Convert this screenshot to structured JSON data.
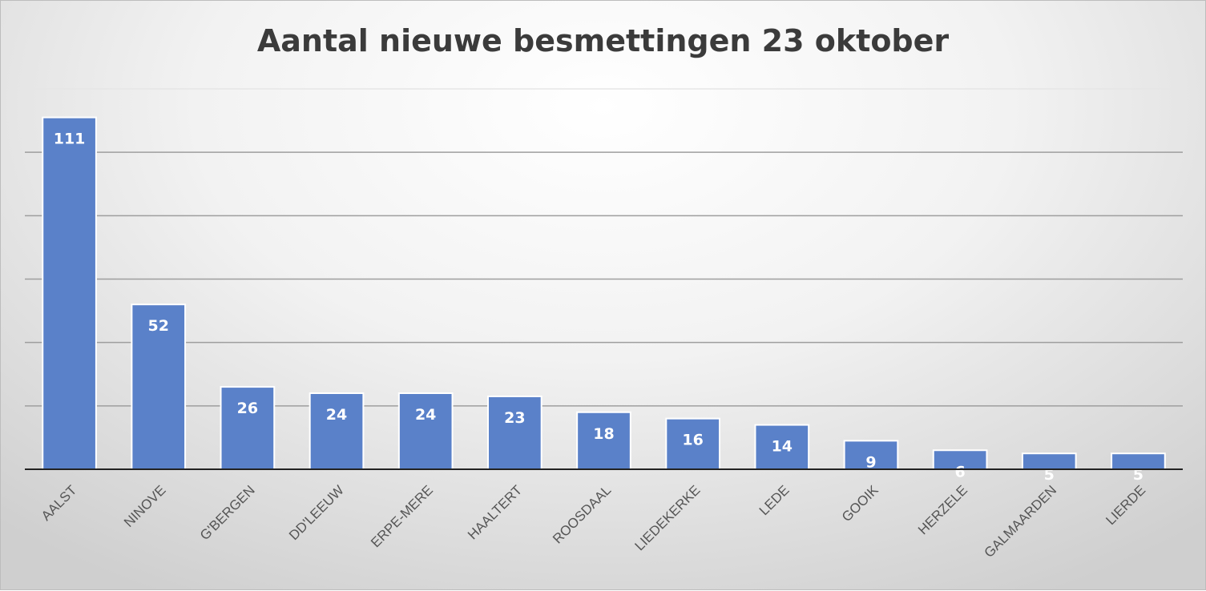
{
  "chart_data": {
    "type": "bar",
    "title": "Aantal nieuwe besmettingen 23 oktober",
    "xlabel": "",
    "ylabel": "",
    "categories": [
      "AALST",
      "NINOVE",
      "G'BERGEN",
      "DD'LEEUW",
      "ERPE-MERE",
      "HAALTERT",
      "ROOSDAAL",
      "LIEDEKERKE",
      "LEDE",
      "GOOIK",
      "HERZELE",
      "GALMAARDEN",
      "LIERDE"
    ],
    "values": [
      111,
      52,
      26,
      24,
      24,
      23,
      18,
      16,
      14,
      9,
      6,
      5,
      5
    ],
    "ylim": [
      0,
      120
    ],
    "gridlines": [
      20,
      40,
      60,
      80,
      100,
      120
    ],
    "grid": true,
    "legend": "none",
    "bar_color": "#5a81c9",
    "bar_edge_color": "#ffffff",
    "label_color": "#ffffff",
    "axis_label_color": "#555555"
  }
}
